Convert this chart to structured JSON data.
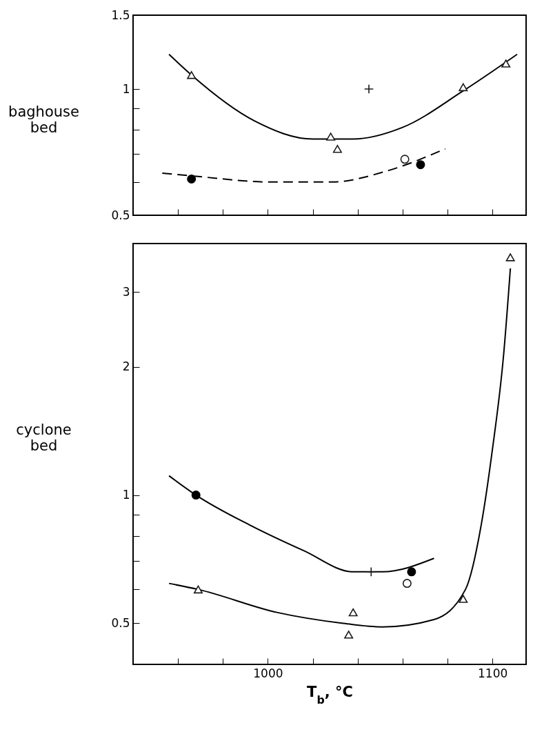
{
  "chart_data": [
    {
      "type": "scatter",
      "ylabel": "baghouse\nbed",
      "log": "y",
      "tick_labels": "y",
      "grid": false,
      "xlim": [
        940,
        1115
      ],
      "xticks": [
        {
          "value": 960,
          "label": null
        },
        {
          "value": 980,
          "label": null
        },
        {
          "value": 1000,
          "label": null
        },
        {
          "value": 1020,
          "label": null
        },
        {
          "value": 1040,
          "label": null
        },
        {
          "value": 1060,
          "label": null
        },
        {
          "value": 1080,
          "label": null
        },
        {
          "value": 1100,
          "label": null
        }
      ],
      "ylim": [
        0.5,
        1.5
      ],
      "yticks": [
        0.5,
        {
          "value": 0.6,
          "label": null
        },
        {
          "value": 0.7,
          "label": null
        },
        {
          "value": 0.8,
          "label": null
        },
        {
          "value": 0.9,
          "label": null
        },
        1,
        1.5
      ],
      "series": [
        {
          "type": "line",
          "line_style": "solid",
          "marker": "none",
          "color": "#000000",
          "x": [
            956,
            966,
            994,
            1020,
            1038,
            1060,
            1087,
            1111
          ],
          "values": [
            1.21,
            1.08,
            0.84,
            0.76,
            0.76,
            0.81,
            0.99,
            1.21
          ]
        },
        {
          "type": "line",
          "line_style": "dashed",
          "marker": "none",
          "color": "#000000",
          "x": [
            953,
            967,
            1002,
            1028,
            1054,
            1079
          ],
          "values": [
            0.63,
            0.62,
            0.6,
            0.6,
            0.64,
            0.72
          ]
        },
        {
          "type": "scatter",
          "marker": "triangle",
          "color": "#1a1a1a",
          "x": [
            966,
            1028,
            1031,
            1087,
            1106
          ],
          "values": [
            1.08,
            0.77,
            0.72,
            1.01,
            1.15
          ]
        },
        {
          "type": "scatter",
          "marker": "cross",
          "color": "#1a1a1a",
          "x": [
            1045
          ],
          "values": [
            1.0
          ]
        },
        {
          "type": "scatter",
          "marker": "circle",
          "color": "#1a1a1a",
          "x": [
            1061
          ],
          "values": [
            0.68
          ]
        },
        {
          "type": "scatter",
          "marker": "circle",
          "color": "#000000",
          "x": [
            966,
            1068
          ],
          "values": [
            0.61,
            0.66
          ]
        }
      ]
    },
    {
      "type": "scatter",
      "ylabel": "cyclone\nbed",
      "xlabel": "T$_{b}$, °C",
      "log": "y",
      "grid": false,
      "xlim": [
        940,
        1115
      ],
      "xticks": [
        {
          "value": 960,
          "label": null
        },
        {
          "value": 980,
          "label": null
        },
        1000,
        {
          "value": 1020,
          "label": null
        },
        {
          "value": 1040,
          "label": null
        },
        {
          "value": 1060,
          "label": null
        },
        {
          "value": 1080,
          "label": null
        },
        1100
      ],
      "ylim": [
        0.4,
        3.9
      ],
      "yticks": [
        0.5,
        {
          "value": 0.6,
          "label": null
        },
        {
          "value": 0.7,
          "label": null
        },
        {
          "value": 0.8,
          "label": null
        },
        {
          "value": 0.9,
          "label": null
        },
        1,
        2,
        3
      ],
      "series": [
        {
          "type": "line",
          "line_style": "solid",
          "marker": "none",
          "color": "#000000",
          "x": [
            956,
            968,
            992,
            1016,
            1038,
            1051,
            1074
          ],
          "values": [
            1.11,
            1.0,
            0.85,
            0.74,
            0.66,
            0.66,
            0.71
          ]
        },
        {
          "type": "line",
          "line_style": "solid",
          "marker": "none",
          "color": "#000000",
          "x": [
            956,
            969,
            1004,
            1033,
            1051,
            1074,
            1088,
            1095,
            1100,
            1105,
            1108
          ],
          "values": [
            0.62,
            0.6,
            0.53,
            0.5,
            0.49,
            0.51,
            0.6,
            0.85,
            1.28,
            2.14,
            3.41
          ]
        },
        {
          "type": "scatter",
          "marker": "triangle",
          "color": "#1a1a1a",
          "x": [
            969,
            1038,
            1036,
            1087,
            1108
          ],
          "values": [
            0.6,
            0.53,
            0.47,
            0.57,
            3.62
          ]
        },
        {
          "type": "scatter",
          "marker": "cross",
          "color": "#1a1a1a",
          "x": [
            1046
          ],
          "values": [
            0.66
          ]
        },
        {
          "type": "scatter",
          "marker": "circle",
          "color": "#1a1a1a",
          "x": [
            1062
          ],
          "values": [
            0.62
          ]
        },
        {
          "type": "scatter",
          "marker": "circle",
          "color": "#000000",
          "x": [
            968,
            1064
          ],
          "values": [
            1.0,
            0.66
          ]
        }
      ]
    }
  ]
}
